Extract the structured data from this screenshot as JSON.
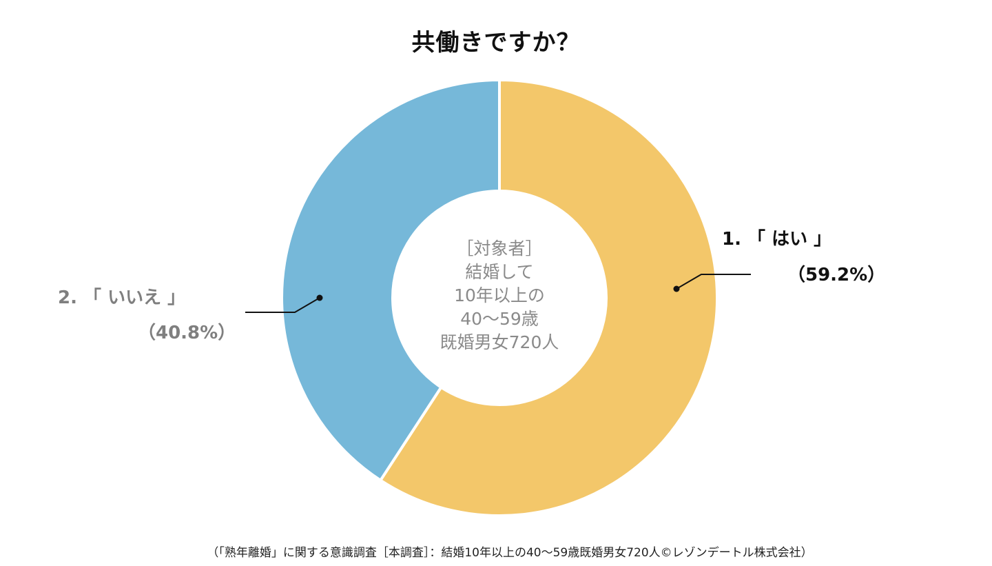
{
  "chart_data": {
    "type": "pie",
    "title": "共働きですか？",
    "center_label": [
      "［対象者］",
      "結婚して",
      "10年以上の",
      "40～59歳",
      "既婚男女720人"
    ],
    "slices": [
      {
        "label": "1. 「 はい 」",
        "value": 59.2,
        "value_label": "（59.2%）",
        "color": "#f3c76a"
      },
      {
        "label": "2. 「 いいえ 」",
        "value": 40.8,
        "value_label": "（40.8%）",
        "color": "#76b8d9"
      }
    ],
    "source": "（「熟年離婚」に関する意識調査［本調査］：結婚10年以上の40～59歳既婚男女720人©レゾンデートル株式会社）"
  }
}
